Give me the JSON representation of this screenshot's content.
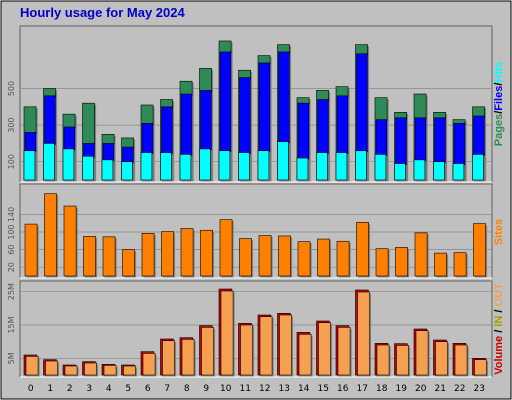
{
  "title": "Hourly usage for May 2024",
  "colors": {
    "frame_bg": "#c0c0c0",
    "page_bg": "#ffffff",
    "pages": "#2e8b57",
    "files": "#0000ff",
    "hits": "#00ffff",
    "sites": "#ff8000",
    "vol_out": "#cc0000",
    "vol_in": "#f5a050",
    "grid": "#888888"
  },
  "chart_data": [
    {
      "type": "bar",
      "panel": "hits-files-pages",
      "categories": [
        "0",
        "1",
        "2",
        "3",
        "4",
        "5",
        "6",
        "7",
        "8",
        "9",
        "10",
        "11",
        "12",
        "13",
        "14",
        "15",
        "16",
        "17",
        "18",
        "19",
        "20",
        "21",
        "22",
        "23"
      ],
      "series": [
        {
          "name": "Pages",
          "values": [
            400,
            500,
            360,
            420,
            250,
            230,
            410,
            440,
            540,
            610,
            760,
            600,
            680,
            740,
            450,
            490,
            510,
            740,
            450,
            370,
            470,
            370,
            330,
            400
          ]
        },
        {
          "name": "Files",
          "values": [
            260,
            460,
            290,
            200,
            200,
            180,
            310,
            400,
            470,
            490,
            700,
            560,
            640,
            700,
            420,
            440,
            460,
            690,
            330,
            340,
            340,
            340,
            310,
            350
          ]
        },
        {
          "name": "Hits",
          "values": [
            160,
            200,
            170,
            130,
            110,
            100,
            150,
            150,
            140,
            170,
            160,
            150,
            160,
            210,
            120,
            150,
            150,
            160,
            140,
            90,
            110,
            100,
            90,
            140
          ]
        }
      ],
      "y_ticks": [
        100,
        300,
        500
      ],
      "ylim": [
        0,
        820
      ],
      "legend": [
        "Pages",
        "Files",
        "Hits"
      ],
      "legend_sep": "/"
    },
    {
      "type": "bar",
      "panel": "sites",
      "categories": [
        "0",
        "1",
        "2",
        "3",
        "4",
        "5",
        "6",
        "7",
        "8",
        "9",
        "10",
        "11",
        "12",
        "13",
        "14",
        "15",
        "16",
        "17",
        "18",
        "19",
        "20",
        "21",
        "22",
        "23"
      ],
      "series": [
        {
          "name": "Sites",
          "values": [
            118,
            187,
            159,
            90,
            89,
            60,
            97,
            101,
            108,
            104,
            128,
            85,
            92,
            91,
            78,
            84,
            79,
            122,
            62,
            65,
            98,
            52,
            53,
            119
          ]
        }
      ],
      "y_ticks": [
        20,
        60,
        100,
        140
      ],
      "ylim": [
        0,
        200
      ],
      "legend": [
        "Sites"
      ]
    },
    {
      "type": "bar",
      "panel": "volume",
      "categories": [
        "0",
        "1",
        "2",
        "3",
        "4",
        "5",
        "6",
        "7",
        "8",
        "9",
        "10",
        "11",
        "12",
        "13",
        "14",
        "15",
        "16",
        "17",
        "18",
        "19",
        "20",
        "21",
        "22",
        "23"
      ],
      "series": [
        {
          "name": "OUT",
          "values": [
            6.0,
            4.6,
            3.0,
            4.0,
            3.2,
            3.0,
            7.0,
            10.8,
            11.2,
            14.8,
            25.8,
            15.5,
            18.0,
            18.5,
            12.8,
            16.2,
            14.8,
            25.5,
            9.5,
            9.4,
            13.8,
            10.5,
            9.5,
            5.0
          ]
        },
        {
          "name": "IN",
          "values": [
            5.6,
            4.2,
            2.7,
            3.6,
            2.9,
            2.7,
            6.5,
            10.3,
            10.7,
            14.3,
            25.2,
            15.0,
            17.5,
            18.0,
            12.2,
            15.7,
            14.3,
            24.9,
            9.0,
            8.9,
            13.3,
            10.0,
            9.0,
            4.6
          ]
        }
      ],
      "y_ticks": [
        5,
        15,
        25
      ],
      "tick_suffix": "M",
      "ylim": [
        0,
        27
      ],
      "legend": [
        "Volume",
        "IN",
        "OUT"
      ],
      "legend_sep": "/"
    }
  ]
}
